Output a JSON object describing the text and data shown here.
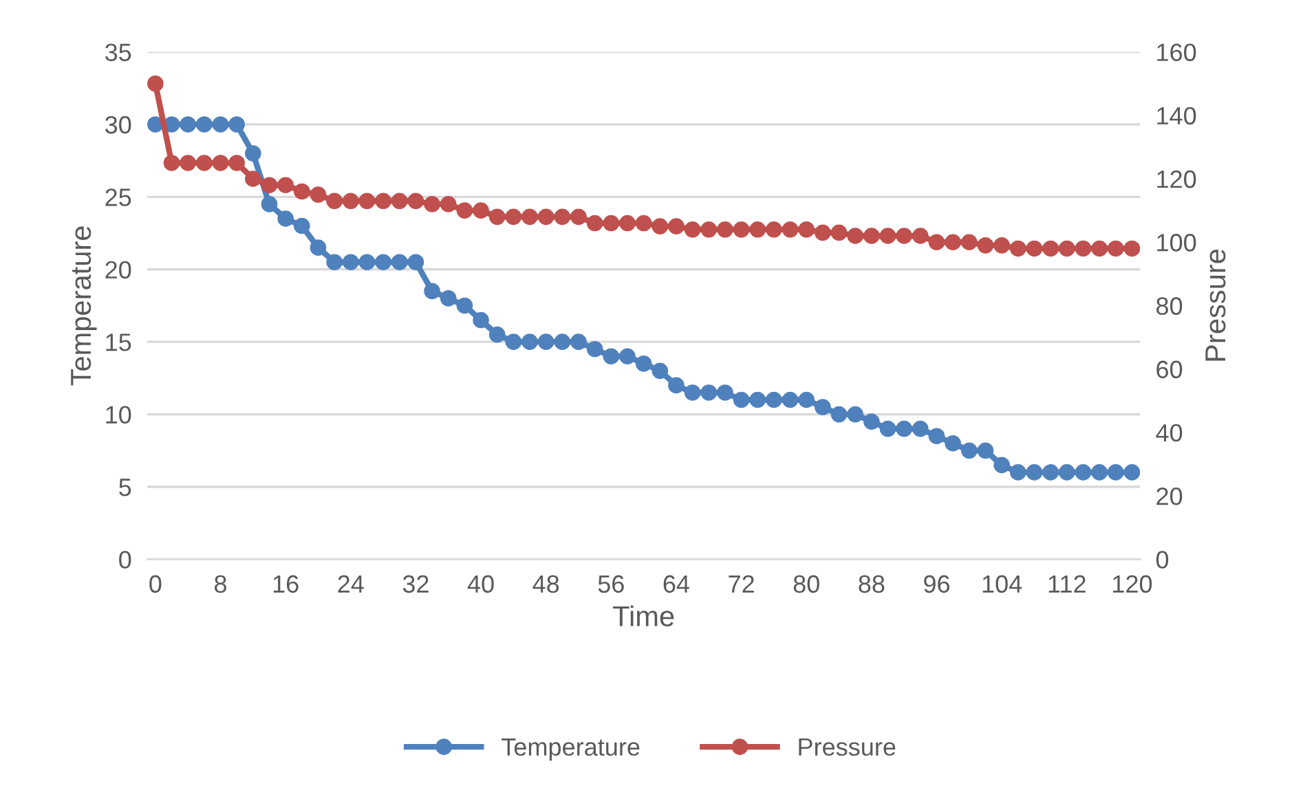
{
  "chart_data": {
    "type": "line",
    "xlabel": "Time",
    "ylabel": "Temperature",
    "y2label": "Pressure",
    "x": [
      0,
      2,
      4,
      6,
      8,
      10,
      12,
      14,
      16,
      18,
      20,
      22,
      24,
      26,
      28,
      30,
      32,
      34,
      36,
      38,
      40,
      42,
      44,
      46,
      48,
      50,
      52,
      54,
      56,
      58,
      60,
      62,
      64,
      66,
      68,
      70,
      72,
      74,
      76,
      78,
      80,
      82,
      84,
      86,
      88,
      90,
      92,
      94,
      96,
      98,
      100,
      102,
      104,
      106,
      108,
      110,
      112,
      114,
      116,
      118,
      120
    ],
    "xlim": [
      -1,
      121
    ],
    "xticks": [
      0,
      8,
      16,
      24,
      32,
      40,
      48,
      56,
      64,
      72,
      80,
      88,
      96,
      104,
      112,
      120
    ],
    "ylim": [
      0,
      35
    ],
    "yticks": [
      0,
      5,
      10,
      15,
      20,
      25,
      30,
      35
    ],
    "y2lim": [
      0,
      160
    ],
    "y2ticks": [
      0,
      20,
      40,
      60,
      80,
      100,
      120,
      140,
      160
    ],
    "grid": "y",
    "legend": "bottom",
    "marker": "circle",
    "line_style": "solid",
    "series": [
      {
        "name": "Temperature",
        "color": "#4f81bd",
        "values": [
          30,
          30,
          30,
          30,
          30,
          30,
          28,
          24.5,
          23.5,
          23,
          21.5,
          20.5,
          20.5,
          20.5,
          20.5,
          20.5,
          20.5,
          18.5,
          18,
          17.5,
          16.5,
          15.5,
          15,
          15,
          15,
          15,
          15,
          14.5,
          14,
          14,
          13.5,
          13,
          12,
          11.5,
          11.5,
          11.5,
          11,
          11,
          11,
          11,
          11,
          10.5,
          10,
          10,
          9.5,
          9,
          9,
          9,
          8.5,
          8,
          7.5,
          7.5,
          6.5,
          6,
          6,
          6,
          6,
          6,
          6,
          6,
          6
        ]
      },
      {
        "name": "Pressure",
        "color": "#c0504d",
        "axis": "y2",
        "values": [
          150,
          125,
          125,
          125,
          125,
          125,
          120,
          118,
          118,
          116,
          115,
          113,
          113,
          113,
          113,
          113,
          113,
          112,
          112,
          110,
          110,
          108,
          108,
          108,
          108,
          108,
          108,
          106,
          106,
          106,
          106,
          105,
          105,
          104,
          104,
          104,
          104,
          104,
          104,
          104,
          104,
          103,
          103,
          102,
          102,
          102,
          102,
          102,
          100,
          100,
          100,
          99,
          99,
          98,
          98,
          98,
          98,
          98,
          98,
          98,
          98
        ]
      }
    ]
  }
}
